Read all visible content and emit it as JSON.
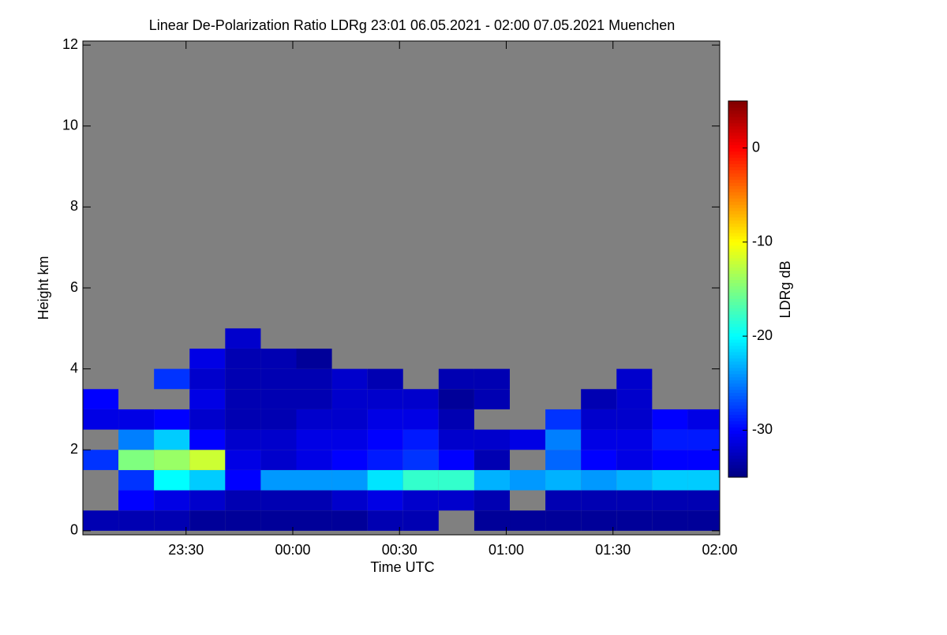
{
  "chart_data": {
    "type": "heatmap",
    "title": "Linear De-Polarization Ratio LDRg   23:01 06.05.2021 - 02:00 07.05.2021 Muenchen",
    "x_label": "Time UTC",
    "y_label": "Height km",
    "colorbar_label": "LDRg dB",
    "background": "#808080",
    "xlim": [
      1381,
      1560
    ],
    "xticks": [
      {
        "value": 1410,
        "label": "23:30"
      },
      {
        "value": 1440,
        "label": "00:00"
      },
      {
        "value": 1470,
        "label": "00:30"
      },
      {
        "value": 1500,
        "label": "01:00"
      },
      {
        "value": 1530,
        "label": "01:30"
      },
      {
        "value": 1560,
        "label": "02:00"
      }
    ],
    "ylim": [
      -0.1,
      12.1
    ],
    "yticks": [
      0,
      2,
      4,
      6,
      8,
      10,
      12
    ],
    "clim": [
      -35,
      5
    ],
    "cticks": [
      0,
      -10,
      -20,
      -30
    ],
    "colormap": [
      "#00007f",
      "#0000ff",
      "#007fff",
      "#00ffff",
      "#7fff7f",
      "#ffff00",
      "#ff7f00",
      "#ff0000",
      "#7f0000"
    ],
    "x": [
      1386,
      1396,
      1406,
      1416,
      1426,
      1436,
      1446,
      1456,
      1466,
      1476,
      1486,
      1496,
      1506,
      1516,
      1526,
      1536,
      1546,
      1556
    ],
    "y": [
      0.25,
      0.75,
      1.25,
      1.75,
      2.25,
      2.75,
      3.25,
      3.75,
      4.25,
      4.75
    ],
    "z": [
      [
        -33,
        null,
        null,
        -28,
        null,
        -31,
        -30,
        null,
        null,
        null
      ],
      [
        -33,
        -30,
        -28,
        -15,
        -25,
        -31,
        null,
        null,
        null,
        null
      ],
      [
        -33,
        -31,
        -20,
        -14,
        -22,
        -30,
        null,
        -28,
        null,
        null
      ],
      [
        -34,
        -32,
        -22,
        -12,
        -30,
        -32,
        -31,
        -32,
        -31,
        null
      ],
      [
        -34,
        -33,
        -30,
        -31,
        -32,
        -33,
        -33,
        -33,
        -33,
        -32
      ],
      [
        -34,
        -33,
        -24,
        -32,
        -32,
        -33,
        -33,
        -33,
        -33,
        null
      ],
      [
        -34,
        -33,
        -24,
        -31,
        -31,
        -32,
        -33,
        -33,
        -34,
        null
      ],
      [
        -34,
        -32,
        -24,
        -30,
        -31,
        -32,
        -32,
        -32,
        null,
        null
      ],
      [
        -33,
        -31,
        -21,
        -29,
        -30,
        -31,
        -32,
        -33,
        null,
        null
      ],
      [
        -33,
        -32,
        -18,
        -28,
        -29,
        -31,
        -32,
        null,
        null,
        null
      ],
      [
        null,
        -32,
        -18,
        -30,
        -32,
        -33,
        -34,
        -33,
        null,
        null
      ],
      [
        -34,
        -33,
        -23,
        -33,
        -32,
        null,
        -33,
        -33,
        null,
        null
      ],
      [
        -34,
        null,
        -24,
        null,
        -31,
        null,
        null,
        null,
        null,
        null
      ],
      [
        -34,
        -33,
        -23,
        -26,
        -25,
        -28,
        null,
        null,
        null,
        null
      ],
      [
        -34,
        -33,
        -24,
        -30,
        -31,
        -32,
        -33,
        null,
        null,
        null
      ],
      [
        -34,
        -33,
        -23,
        -31,
        -31,
        -32,
        -32,
        -32,
        null,
        null
      ],
      [
        -34,
        -33,
        -22,
        -30,
        -29,
        -30,
        null,
        null,
        null,
        null
      ],
      [
        -34,
        -33,
        -22,
        -30,
        -29,
        -31,
        null,
        null,
        null,
        null
      ]
    ]
  }
}
